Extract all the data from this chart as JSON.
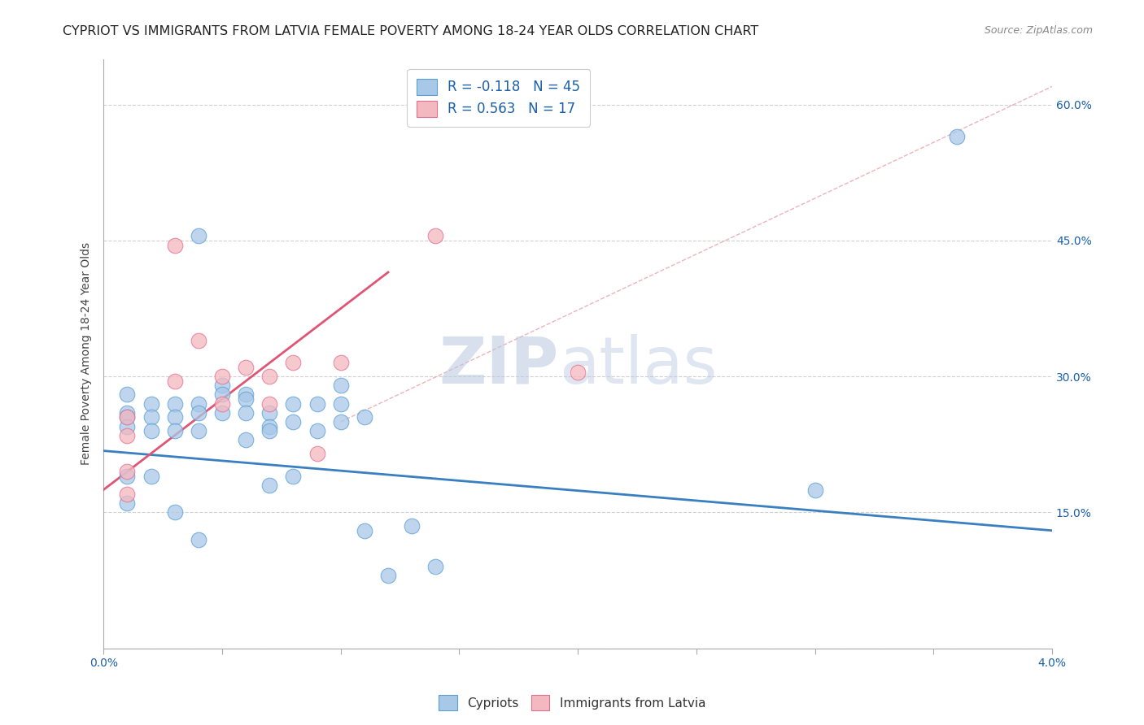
{
  "title": "CYPRIOT VS IMMIGRANTS FROM LATVIA FEMALE POVERTY AMONG 18-24 YEAR OLDS CORRELATION CHART",
  "source": "Source: ZipAtlas.com",
  "ylabel": "Female Poverty Among 18-24 Year Olds",
  "xlim": [
    0.0,
    0.04
  ],
  "ylim": [
    0.0,
    0.65
  ],
  "xticks": [
    0.0,
    0.005,
    0.01,
    0.015,
    0.02,
    0.025,
    0.03,
    0.035,
    0.04
  ],
  "xticklabels": [
    "0.0%",
    "",
    "",
    "",
    "",
    "",
    "",
    "",
    "4.0%"
  ],
  "yticks": [
    0.0,
    0.15,
    0.3,
    0.45,
    0.6
  ],
  "yticklabels": [
    "",
    "15.0%",
    "30.0%",
    "45.0%",
    "60.0%"
  ],
  "cypriot_color": "#a8c8e8",
  "cypriot_edge": "#5a9fd4",
  "latvia_color": "#f4b8c0",
  "latvia_edge": "#e07090",
  "cypriot_R": -0.118,
  "cypriot_N": 45,
  "latvia_R": 0.563,
  "latvia_N": 17,
  "watermark_zip": "ZIP",
  "watermark_atlas": "atlas",
  "background_color": "#ffffff",
  "grid_color": "#d0d0d0",
  "cypriot_scatter_x": [
    0.001,
    0.001,
    0.001,
    0.001,
    0.001,
    0.001,
    0.002,
    0.002,
    0.002,
    0.002,
    0.003,
    0.003,
    0.003,
    0.003,
    0.004,
    0.004,
    0.004,
    0.004,
    0.004,
    0.005,
    0.005,
    0.005,
    0.006,
    0.006,
    0.006,
    0.006,
    0.007,
    0.007,
    0.007,
    0.007,
    0.008,
    0.008,
    0.008,
    0.009,
    0.009,
    0.01,
    0.01,
    0.01,
    0.011,
    0.011,
    0.012,
    0.013,
    0.014,
    0.03,
    0.036
  ],
  "cypriot_scatter_y": [
    0.28,
    0.26,
    0.255,
    0.245,
    0.19,
    0.16,
    0.27,
    0.255,
    0.24,
    0.19,
    0.27,
    0.255,
    0.24,
    0.15,
    0.455,
    0.27,
    0.26,
    0.24,
    0.12,
    0.29,
    0.28,
    0.26,
    0.28,
    0.275,
    0.26,
    0.23,
    0.26,
    0.245,
    0.24,
    0.18,
    0.27,
    0.25,
    0.19,
    0.27,
    0.24,
    0.29,
    0.27,
    0.25,
    0.255,
    0.13,
    0.08,
    0.135,
    0.09,
    0.175,
    0.565
  ],
  "latvia_scatter_x": [
    0.001,
    0.001,
    0.001,
    0.001,
    0.003,
    0.003,
    0.004,
    0.005,
    0.005,
    0.006,
    0.007,
    0.007,
    0.008,
    0.009,
    0.01,
    0.014,
    0.02
  ],
  "latvia_scatter_y": [
    0.255,
    0.235,
    0.195,
    0.17,
    0.445,
    0.295,
    0.34,
    0.3,
    0.27,
    0.31,
    0.3,
    0.27,
    0.315,
    0.215,
    0.315,
    0.455,
    0.305
  ],
  "cypriot_trend_x": [
    0.0,
    0.04
  ],
  "cypriot_trend_y": [
    0.218,
    0.13
  ],
  "latvia_trend_x": [
    0.0,
    0.012
  ],
  "latvia_trend_y": [
    0.175,
    0.415
  ],
  "ref_line_x": [
    0.01,
    0.04
  ],
  "ref_line_y": [
    0.25,
    0.62
  ],
  "title_fontsize": 11.5,
  "axis_label_fontsize": 10,
  "tick_fontsize": 10,
  "legend_fontsize": 12,
  "source_fontsize": 9
}
